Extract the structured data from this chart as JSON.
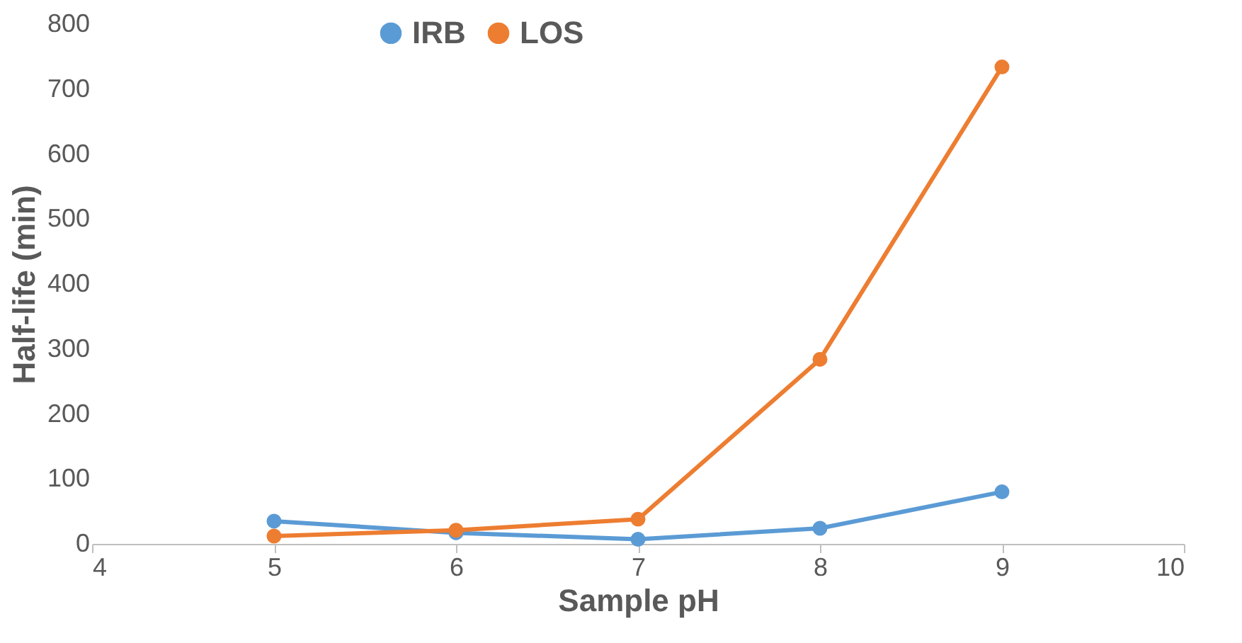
{
  "chart_data": {
    "type": "line",
    "xlabel": "Sample pH",
    "ylabel": "Half-life (min)",
    "xlim": [
      4,
      10
    ],
    "xticks": [
      4,
      5,
      6,
      7,
      8,
      9,
      10
    ],
    "ylim": [
      0,
      800
    ],
    "yticks": [
      0,
      100,
      200,
      300,
      400,
      500,
      600,
      700,
      800
    ],
    "grid": false,
    "legend": "top",
    "marker": "circle",
    "line_style": "solid",
    "series": [
      {
        "name": "IRB",
        "color": "#5b9bd5",
        "x": [
          5,
          6,
          7,
          8,
          9
        ],
        "values": [
          35,
          17,
          7,
          24,
          80
        ]
      },
      {
        "name": "LOS",
        "color": "#ed7d31",
        "x": [
          5,
          6,
          7,
          8,
          9
        ],
        "values": [
          12,
          21,
          38,
          284,
          734
        ]
      }
    ]
  }
}
